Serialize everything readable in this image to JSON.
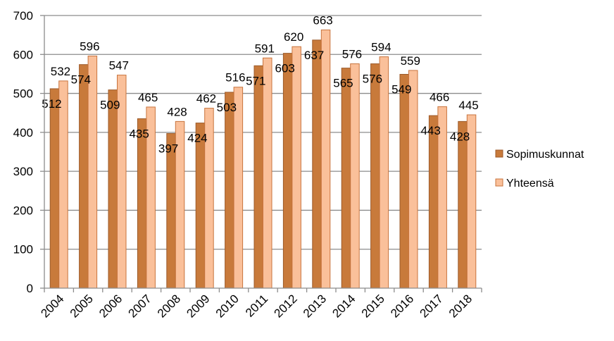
{
  "chart_data": {
    "type": "bar",
    "title": "",
    "xlabel": "",
    "ylabel": "",
    "ylim": [
      0,
      700
    ],
    "yticks": [
      0,
      100,
      200,
      300,
      400,
      500,
      600,
      700
    ],
    "grid": true,
    "legend_position": "right",
    "categories": [
      "2004",
      "2005",
      "2006",
      "2007",
      "2008",
      "2009",
      "2010",
      "2011",
      "2012",
      "2013",
      "2014",
      "2015",
      "2016",
      "2017",
      "2018"
    ],
    "series": [
      {
        "name": "Sopimuskunnat",
        "color": "#C87A3B",
        "values": [
          512,
          574,
          509,
          435,
          397,
          424,
          503,
          571,
          603,
          637,
          565,
          576,
          549,
          443,
          428
        ]
      },
      {
        "name": "Yhteensä",
        "color": "#FAC09A",
        "values": [
          532,
          596,
          547,
          465,
          428,
          462,
          516,
          591,
          620,
          663,
          576,
          594,
          559,
          466,
          445
        ]
      }
    ]
  }
}
